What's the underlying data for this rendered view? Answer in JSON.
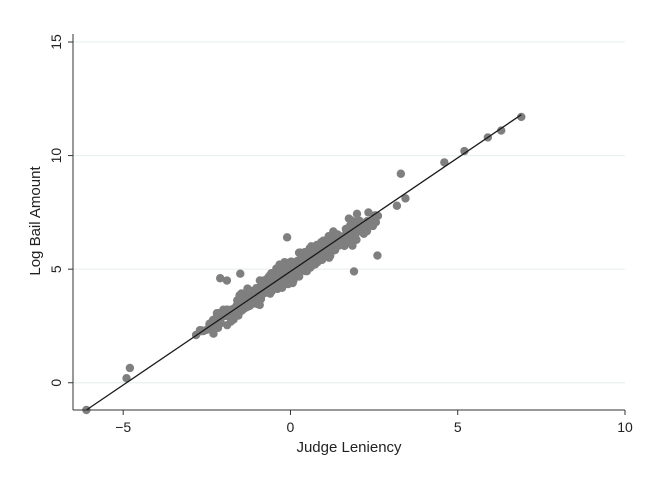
{
  "chart_data": {
    "type": "scatter",
    "xlabel": "Judge Leniency",
    "ylabel": "Log Bail Amount",
    "xlim": [
      -6.5,
      10
    ],
    "ylim": [
      -1.2,
      15
    ],
    "xticks": [
      -5,
      0,
      5,
      10
    ],
    "xtick_labels": [
      "−5",
      "0",
      "5",
      "10"
    ],
    "yticks": [
      0,
      5,
      10,
      15
    ],
    "ytick_labels": [
      "0",
      "5",
      "10",
      "15"
    ],
    "grid": "horizontal",
    "fit_line": {
      "slope": 1.0,
      "intercept": 4.9,
      "x_range": [
        -6.1,
        6.9
      ]
    },
    "point_model": {
      "x_min": -6.1,
      "x_max": 6.9,
      "n": 520,
      "slope": 1.0,
      "intercept": 4.9,
      "spread": 0.32
    },
    "highlight_points": [
      [
        -6.1,
        -1.2
      ],
      [
        -4.8,
        0.65
      ],
      [
        -4.9,
        0.2
      ],
      [
        -2.1,
        4.6
      ],
      [
        -1.9,
        4.5
      ],
      [
        -0.1,
        6.4
      ],
      [
        1.9,
        4.9
      ],
      [
        2.6,
        5.6
      ],
      [
        3.3,
        9.2
      ],
      [
        6.3,
        11.1
      ],
      [
        5.9,
        10.8
      ],
      [
        6.9,
        11.7
      ],
      [
        5.2,
        10.2
      ],
      [
        4.6,
        9.7
      ],
      [
        -1.5,
        4.8
      ]
    ],
    "colors": {
      "points": "#7f7f7f",
      "line": "#1a1a1a",
      "grid": "#e6eeee",
      "axis": "#333333"
    }
  }
}
